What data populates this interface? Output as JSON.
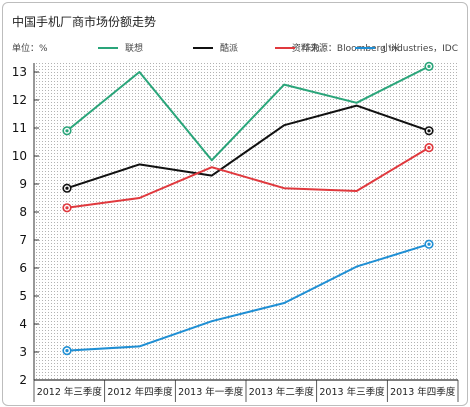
{
  "chart_data": {
    "type": "line",
    "title": "中国手机厂商市场份额走势",
    "unit_label": "单位：%",
    "source": "资料来源：Bloomberg Industries，IDC",
    "categories": [
      "2012 年三季度",
      "2012 年四季度",
      "2013 年一季度",
      "2013 年二季度",
      "2013 年三季度",
      "2013 年四季度"
    ],
    "ylim": [
      2,
      13
    ],
    "yticks": [
      2,
      3,
      4,
      5,
      6,
      7,
      8,
      9,
      10,
      11,
      12,
      13
    ],
    "grid": false,
    "legend": "top",
    "series": [
      {
        "name": "联想",
        "color": "#2aa57a",
        "values": [
          10.9,
          13.0,
          9.85,
          12.55,
          11.9,
          13.2
        ]
      },
      {
        "name": "酷派",
        "color": "#111111",
        "values": [
          8.85,
          9.7,
          9.3,
          11.1,
          11.8,
          10.9
        ]
      },
      {
        "name": "华为",
        "color": "#e0393e",
        "values": [
          8.15,
          8.5,
          9.6,
          8.85,
          8.75,
          10.3
        ]
      },
      {
        "name": "小米",
        "color": "#1f8fd4",
        "values": [
          3.05,
          3.2,
          4.1,
          4.75,
          6.05,
          6.85
        ]
      }
    ]
  }
}
